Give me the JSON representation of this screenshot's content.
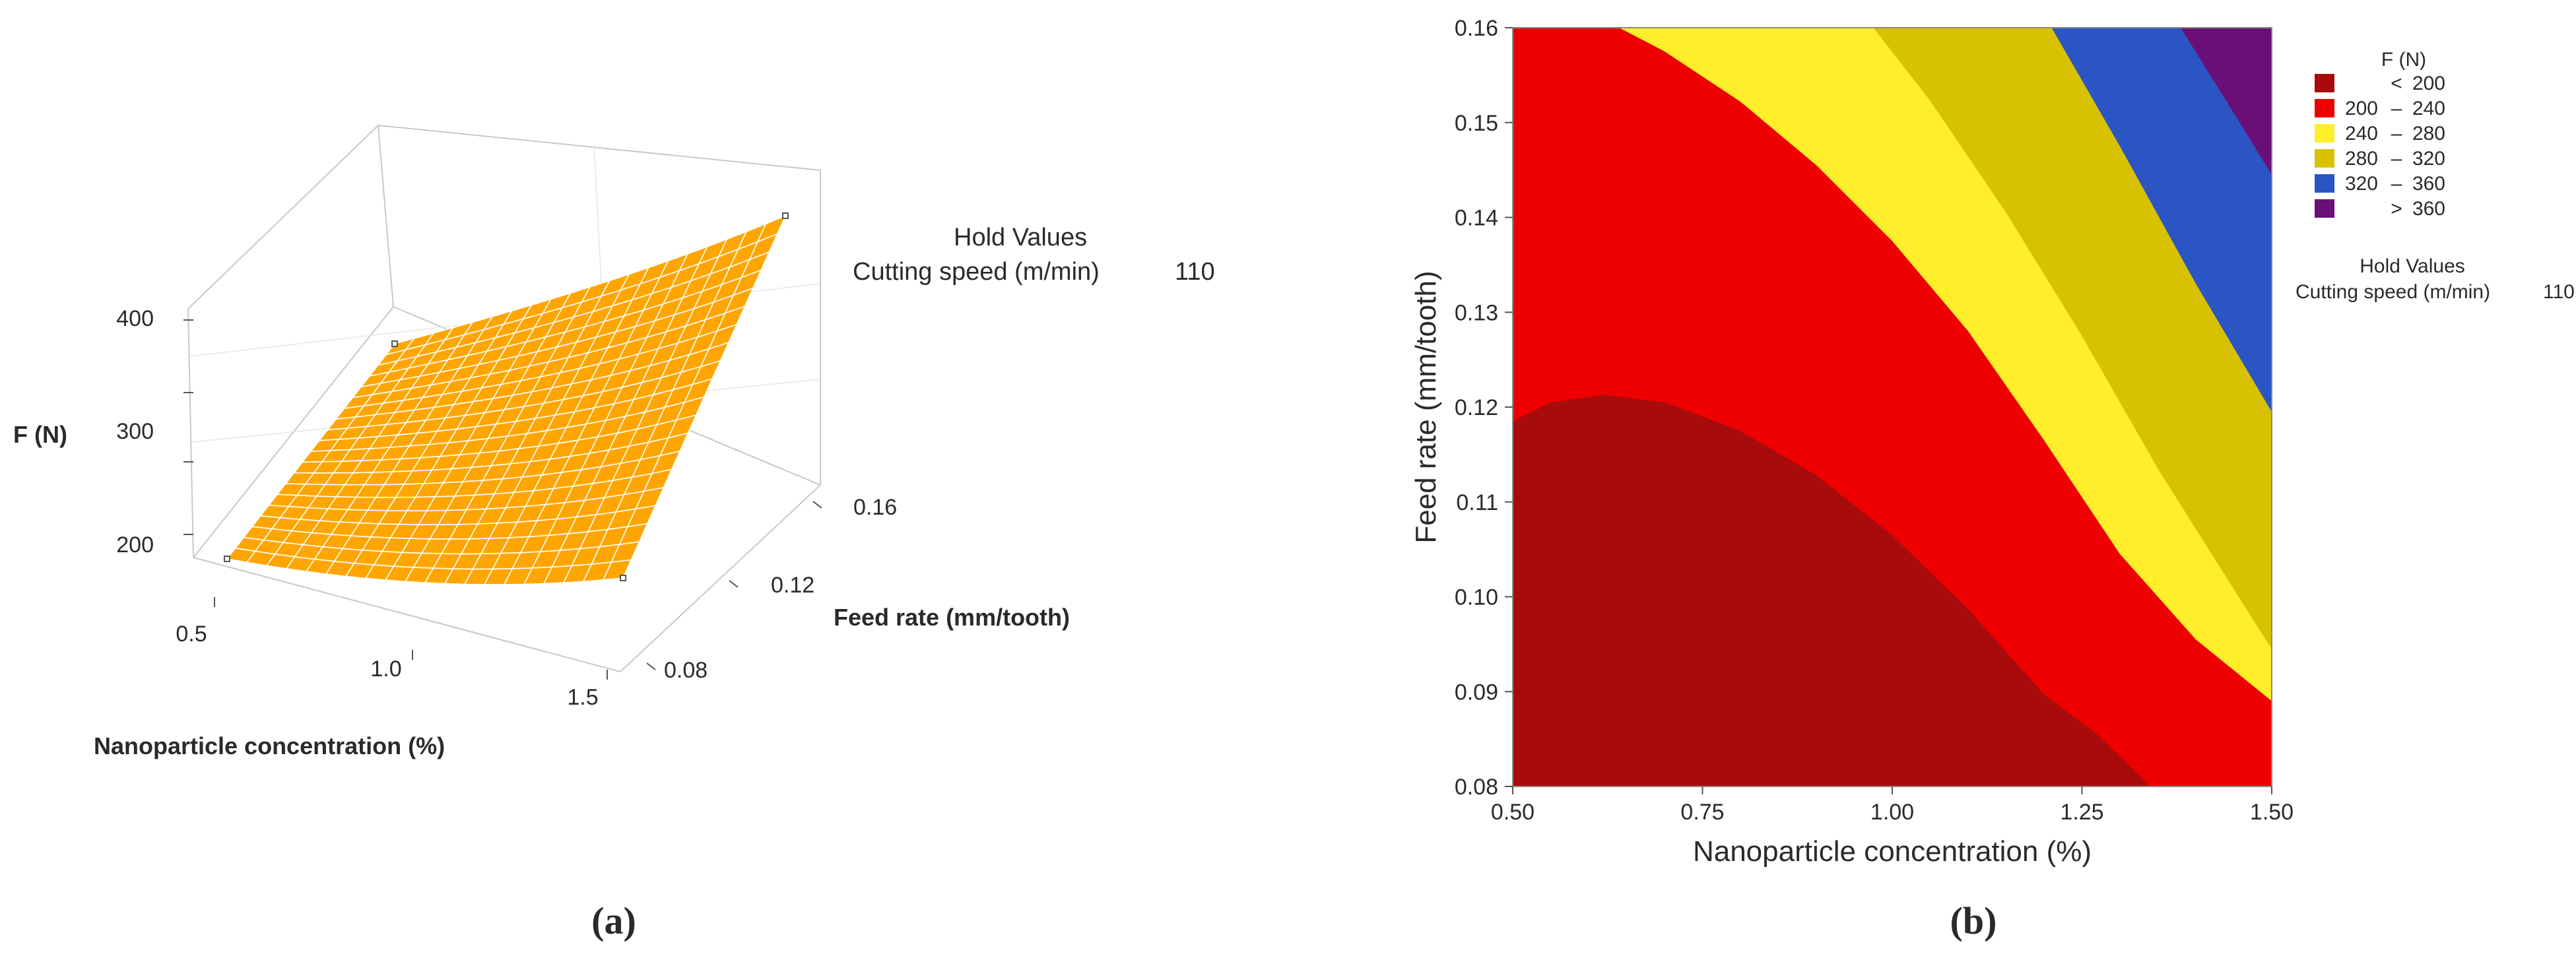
{
  "panels": {
    "a": "(a)",
    "b": "(b)"
  },
  "hold": {
    "title": "Hold Values",
    "label": "Cutting speed (m/min)",
    "value": "110"
  },
  "chart_data": [
    {
      "type": "surface",
      "title": "",
      "xlabel": "Nanoparticle concentration (%)",
      "ylabel": "Feed rate (mm/tooth)",
      "zlabel": "F (N)",
      "xticks": [
        "0.5",
        "1.0",
        "1.5"
      ],
      "yticks": [
        "0.08",
        "0.12",
        "0.16"
      ],
      "zticks": [
        "200",
        "300",
        "400"
      ],
      "xlim": [
        0.5,
        1.5
      ],
      "ylim": [
        0.08,
        0.16
      ],
      "zlim": [
        170,
        420
      ],
      "surface_color": "#ffa500",
      "corner_values": [
        {
          "x": 0.5,
          "y": 0.08,
          "z": 195
        },
        {
          "x": 1.5,
          "y": 0.08,
          "z": 220
        },
        {
          "x": 0.5,
          "y": 0.16,
          "z": 243
        },
        {
          "x": 1.5,
          "y": 0.16,
          "z": 395
        }
      ]
    },
    {
      "type": "contour",
      "title": "",
      "xlabel": "Nanoparticle concentration (%)",
      "ylabel": "Feed rate (mm/tooth)",
      "xticks": [
        "0.50",
        "0.75",
        "1.00",
        "1.25",
        "1.50"
      ],
      "yticks": [
        "0.08",
        "0.09",
        "0.10",
        "0.11",
        "0.12",
        "0.13",
        "0.14",
        "0.15",
        "0.16"
      ],
      "xlim": [
        0.5,
        1.5
      ],
      "ylim": [
        0.08,
        0.16
      ],
      "legend_title": "F (N)",
      "legend_position": "right",
      "levels": [
        {
          "op": "<",
          "lo": "",
          "hi": "200",
          "color": "#a80b0b"
        },
        {
          "op": "–",
          "lo": "200",
          "hi": "240",
          "color": "#ee0000"
        },
        {
          "op": "–",
          "lo": "240",
          "hi": "280",
          "color": "#ffee2a"
        },
        {
          "op": "–",
          "lo": "280",
          "hi": "320",
          "color": "#d8c100"
        },
        {
          "op": "–",
          "lo": "320",
          "hi": "360",
          "color": "#2c55c4"
        },
        {
          "op": ">",
          "lo": "",
          "hi": "360",
          "color": "#6a0f78"
        }
      ],
      "contours": [
        {
          "value": 200,
          "points": [
            [
              0.5,
              0.1185
            ],
            [
              0.55,
              0.1205
            ],
            [
              0.62,
              0.1213
            ],
            [
              0.7,
              0.1205
            ],
            [
              0.8,
              0.1175
            ],
            [
              0.9,
              0.1128
            ],
            [
              1.0,
              0.1065
            ],
            [
              1.1,
              0.0987
            ],
            [
              1.2,
              0.0897
            ],
            [
              1.27,
              0.0855
            ],
            [
              1.34,
              0.08
            ]
          ]
        },
        {
          "value": 240,
          "points": [
            [
              0.64,
              0.16
            ],
            [
              0.7,
              0.1575
            ],
            [
              0.8,
              0.1522
            ],
            [
              0.9,
              0.1455
            ],
            [
              1.0,
              0.1375
            ],
            [
              1.1,
              0.128
            ],
            [
              1.2,
              0.1165
            ],
            [
              1.3,
              0.1045
            ],
            [
              1.4,
              0.0955
            ],
            [
              1.5,
              0.089
            ]
          ]
        },
        {
          "value": 280,
          "points": [
            [
              0.975,
              0.16
            ],
            [
              1.05,
              0.1523
            ],
            [
              1.15,
              0.1405
            ],
            [
              1.25,
              0.1275
            ],
            [
              1.35,
              0.1135
            ],
            [
              1.45,
              0.1008
            ],
            [
              1.5,
              0.0945
            ]
          ]
        },
        {
          "value": 320,
          "points": [
            [
              1.21,
              0.16
            ],
            [
              1.3,
              0.1475
            ],
            [
              1.4,
              0.133
            ],
            [
              1.5,
              0.1195
            ]
          ]
        },
        {
          "value": 360,
          "points": [
            [
              1.38,
              0.16
            ],
            [
              1.45,
              0.151
            ],
            [
              1.5,
              0.1445
            ]
          ]
        }
      ]
    }
  ]
}
